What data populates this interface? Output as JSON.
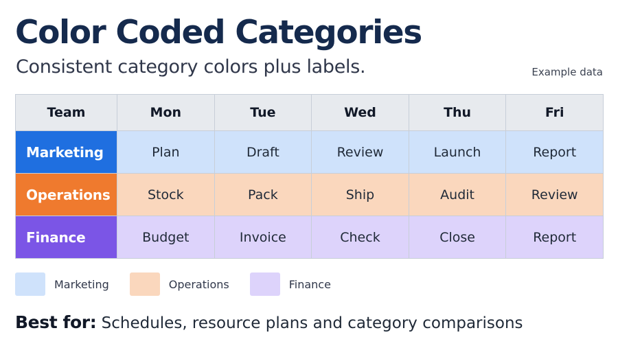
{
  "header": {
    "title": "Color Coded Categories",
    "subtitle": "Consistent category colors plus labels.",
    "note": "Example data"
  },
  "table": {
    "columns": [
      "Team",
      "Mon",
      "Tue",
      "Wed",
      "Thu",
      "Fri"
    ],
    "rows": [
      {
        "team": "Marketing",
        "team_color": "#1f6fe0",
        "cell_color": "#cfe2fb",
        "cells": [
          "Plan",
          "Draft",
          "Review",
          "Launch",
          "Report"
        ]
      },
      {
        "team": "Operations",
        "team_color": "#ef7a2e",
        "cell_color": "#fad7bd",
        "cells": [
          "Stock",
          "Pack",
          "Ship",
          "Audit",
          "Review"
        ]
      },
      {
        "team": "Finance",
        "team_color": "#7b55e6",
        "cell_color": "#ddd3fb",
        "cells": [
          "Budget",
          "Invoice",
          "Check",
          "Close",
          "Report"
        ]
      }
    ]
  },
  "legend": [
    {
      "label": "Marketing",
      "color": "#cfe2fb"
    },
    {
      "label": "Operations",
      "color": "#fad7bd"
    },
    {
      "label": "Finance",
      "color": "#ddd3fb"
    }
  ],
  "footer": {
    "key": "Best for:",
    "text": "Schedules, resource plans and category comparisons"
  }
}
